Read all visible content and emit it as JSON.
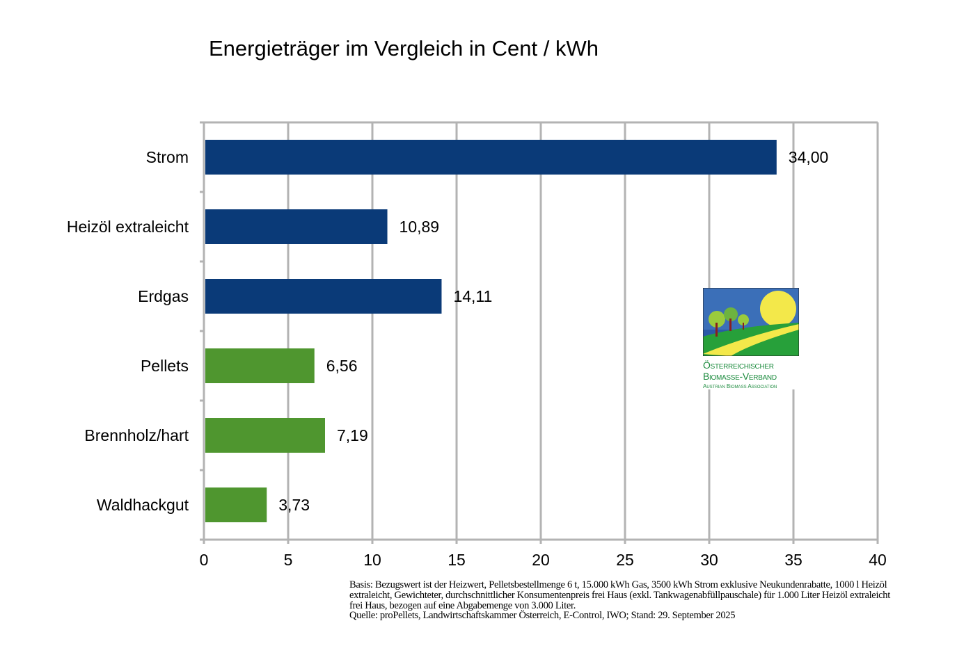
{
  "chart_data": {
    "type": "bar",
    "orientation": "horizontal",
    "title": "Energieträger im Vergleich in Cent / kWh",
    "categories": [
      "Strom",
      "Heizöl extraleicht",
      "Erdgas",
      "Pellets",
      "Brennholz/hart",
      "Waldhackgut"
    ],
    "values": [
      34.0,
      10.89,
      14.11,
      6.56,
      7.19,
      3.73
    ],
    "value_labels": [
      "34,00",
      "10,89",
      "14,11",
      "6,56",
      "7,19",
      "3,73"
    ],
    "colors": [
      "#0a3a78",
      "#0a3a78",
      "#0a3a78",
      "#4f962f",
      "#4f962f",
      "#4f962f"
    ],
    "xlim": [
      0,
      40
    ],
    "xticks": [
      0,
      5,
      10,
      15,
      20,
      25,
      30,
      35,
      40
    ],
    "grid": true,
    "xlabel": "",
    "ylabel": ""
  },
  "logo": {
    "line1": "Österreichischer",
    "line2": "Biomasse-Verband",
    "line3": "Austrian Biomass Association"
  },
  "footnote": {
    "basis": "Basis: Bezugswert ist der Heizwert, Pelletsbestellmenge 6 t, 15.000 kWh Gas, 3500 kWh Strom exklusive Neukundenrabatte, 1000 l Heizöl extraleicht, Gewichteter, durchschnittlicher Konsumentenpreis frei Haus (exkl. Tankwagenabfüllpauschale) für 1.000 Liter Heizöl extraleicht frei Haus, bezogen auf eine Abgabemenge von 3.000 Liter.",
    "source": "Quelle: proPellets, Landwirtschaftskammer Österreich, E-Control, IWO; Stand: 29. September 2025"
  }
}
